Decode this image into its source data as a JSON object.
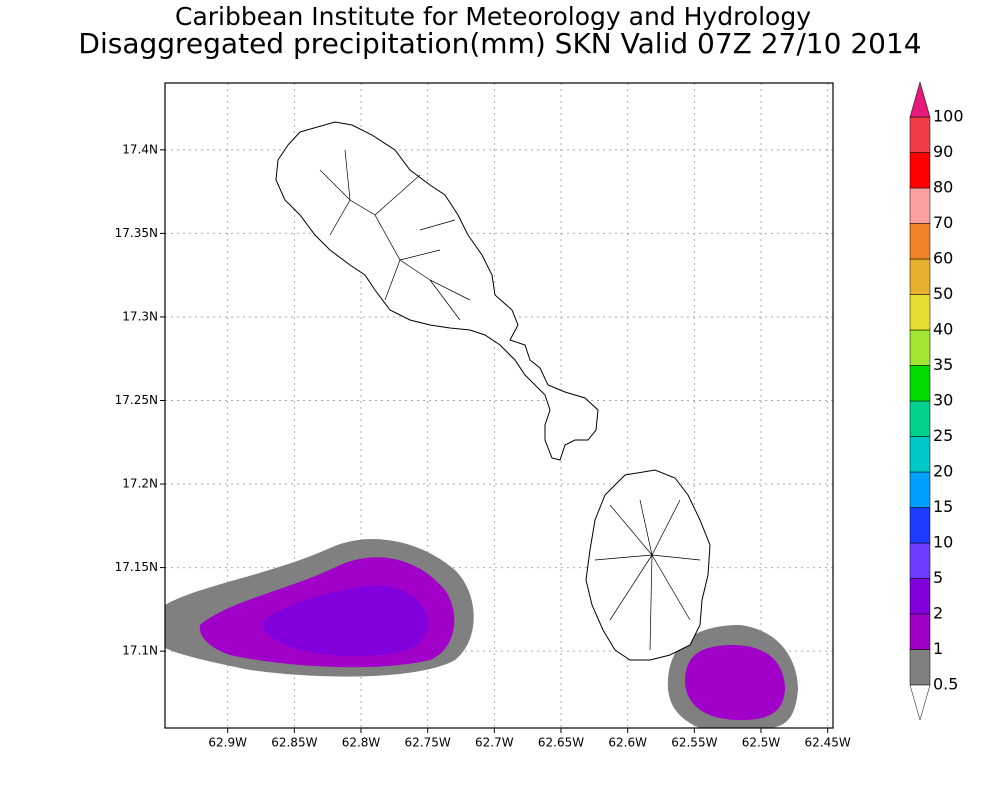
{
  "title": "Caribbean Institute for Meteorology and Hydrology",
  "subtitle": "Disaggregated precipitation(mm) SKN Valid 07Z 27/10 2014",
  "map": {
    "xlim": [
      -62.947,
      -62.446
    ],
    "ylim": [
      17.054,
      17.44
    ],
    "xticks": [
      {
        "value": -62.9,
        "label": "62.9W"
      },
      {
        "value": -62.85,
        "label": "62.85W"
      },
      {
        "value": -62.8,
        "label": "62.8W"
      },
      {
        "value": -62.75,
        "label": "62.75W"
      },
      {
        "value": -62.7,
        "label": "62.7W"
      },
      {
        "value": -62.65,
        "label": "62.65W"
      },
      {
        "value": -62.6,
        "label": "62.6W"
      },
      {
        "value": -62.55,
        "label": "62.55W"
      },
      {
        "value": -62.5,
        "label": "62.5W"
      },
      {
        "value": -62.45,
        "label": "62.45W"
      }
    ],
    "yticks": [
      {
        "value": 17.1,
        "label": "17.1N"
      },
      {
        "value": 17.15,
        "label": "17.15N"
      },
      {
        "value": 17.2,
        "label": "17.2N"
      },
      {
        "value": 17.25,
        "label": "17.25N"
      },
      {
        "value": 17.3,
        "label": "17.3N"
      },
      {
        "value": 17.35,
        "label": "17.35N"
      },
      {
        "value": 17.4,
        "label": "17.4N"
      }
    ],
    "grid": true,
    "colorbar": {
      "levels": [
        0.5,
        1,
        2,
        5,
        10,
        15,
        20,
        25,
        30,
        35,
        40,
        50,
        60,
        70,
        80,
        90,
        100
      ],
      "colors": [
        "#808080",
        "#a000c8",
        "#8200dc",
        "#6e3cff",
        "#1e3cff",
        "#00a0ff",
        "#00c8c8",
        "#00d28c",
        "#00dc00",
        "#a0e632",
        "#e6dc32",
        "#e6af2d",
        "#f08228",
        "#faa0a0",
        "#ff0000",
        "#f03c46"
      ],
      "under_color": "#ffffff",
      "over_color": "#e6197d"
    }
  }
}
